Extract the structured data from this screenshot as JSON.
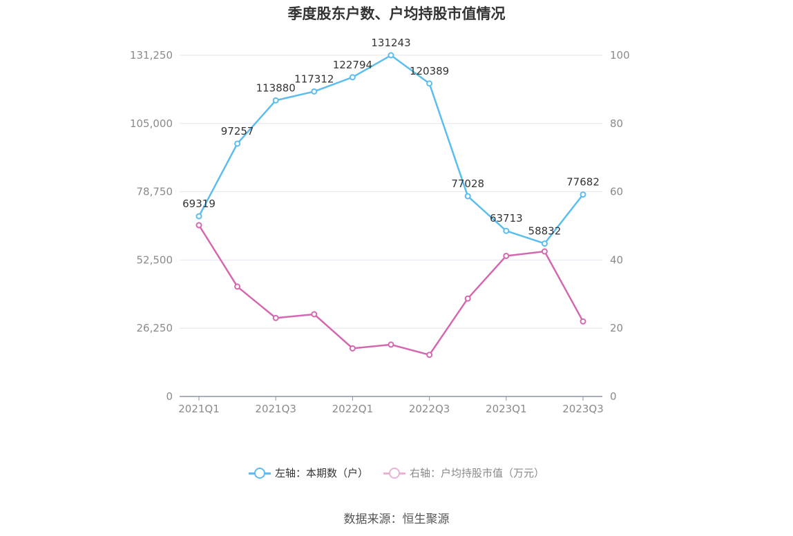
{
  "chart_data": {
    "type": "line",
    "title": "季度股东户数、户均持股市值情况",
    "categories": [
      "2021Q1",
      "2021Q2",
      "2021Q3",
      "2021Q4",
      "2022Q1",
      "2022Q2",
      "2022Q3",
      "2022Q4",
      "2023Q1",
      "2023Q2",
      "2023Q3"
    ],
    "x_tick_labels": [
      "2021Q1",
      "2021Q3",
      "2022Q1",
      "2022Q3",
      "2023Q1",
      "2023Q3"
    ],
    "y_left": {
      "ylim": [
        0,
        131250
      ],
      "ticks": [
        "0",
        "26,250",
        "52,500",
        "78,750",
        "105,000",
        "131,250"
      ]
    },
    "y_right": {
      "ylim": [
        0,
        100
      ],
      "ticks": [
        "0",
        "20",
        "40",
        "60",
        "80",
        "100"
      ]
    },
    "grid": true,
    "legend_position": "bottom",
    "series": [
      {
        "name": "左轴：本期数（户）",
        "axis": "left",
        "color": "#5bbcf0",
        "values": [
          69319,
          97257,
          113880,
          117312,
          122794,
          131243,
          120389,
          77028,
          63713,
          58832,
          77682
        ],
        "labels": [
          "69319",
          "97257",
          "113880",
          "117312",
          "122794",
          "131243",
          "120389",
          "77028",
          "63713",
          "58832",
          "77682"
        ]
      },
      {
        "name": "右轴：户均持股市值（万元）",
        "axis": "right",
        "color": "#d467b0",
        "values": [
          50.2,
          32.2,
          23.0,
          24.1,
          14.1,
          15.2,
          12.2,
          28.7,
          41.2,
          42.5,
          22.0
        ]
      }
    ]
  },
  "source": "数据来源：恒生聚源"
}
